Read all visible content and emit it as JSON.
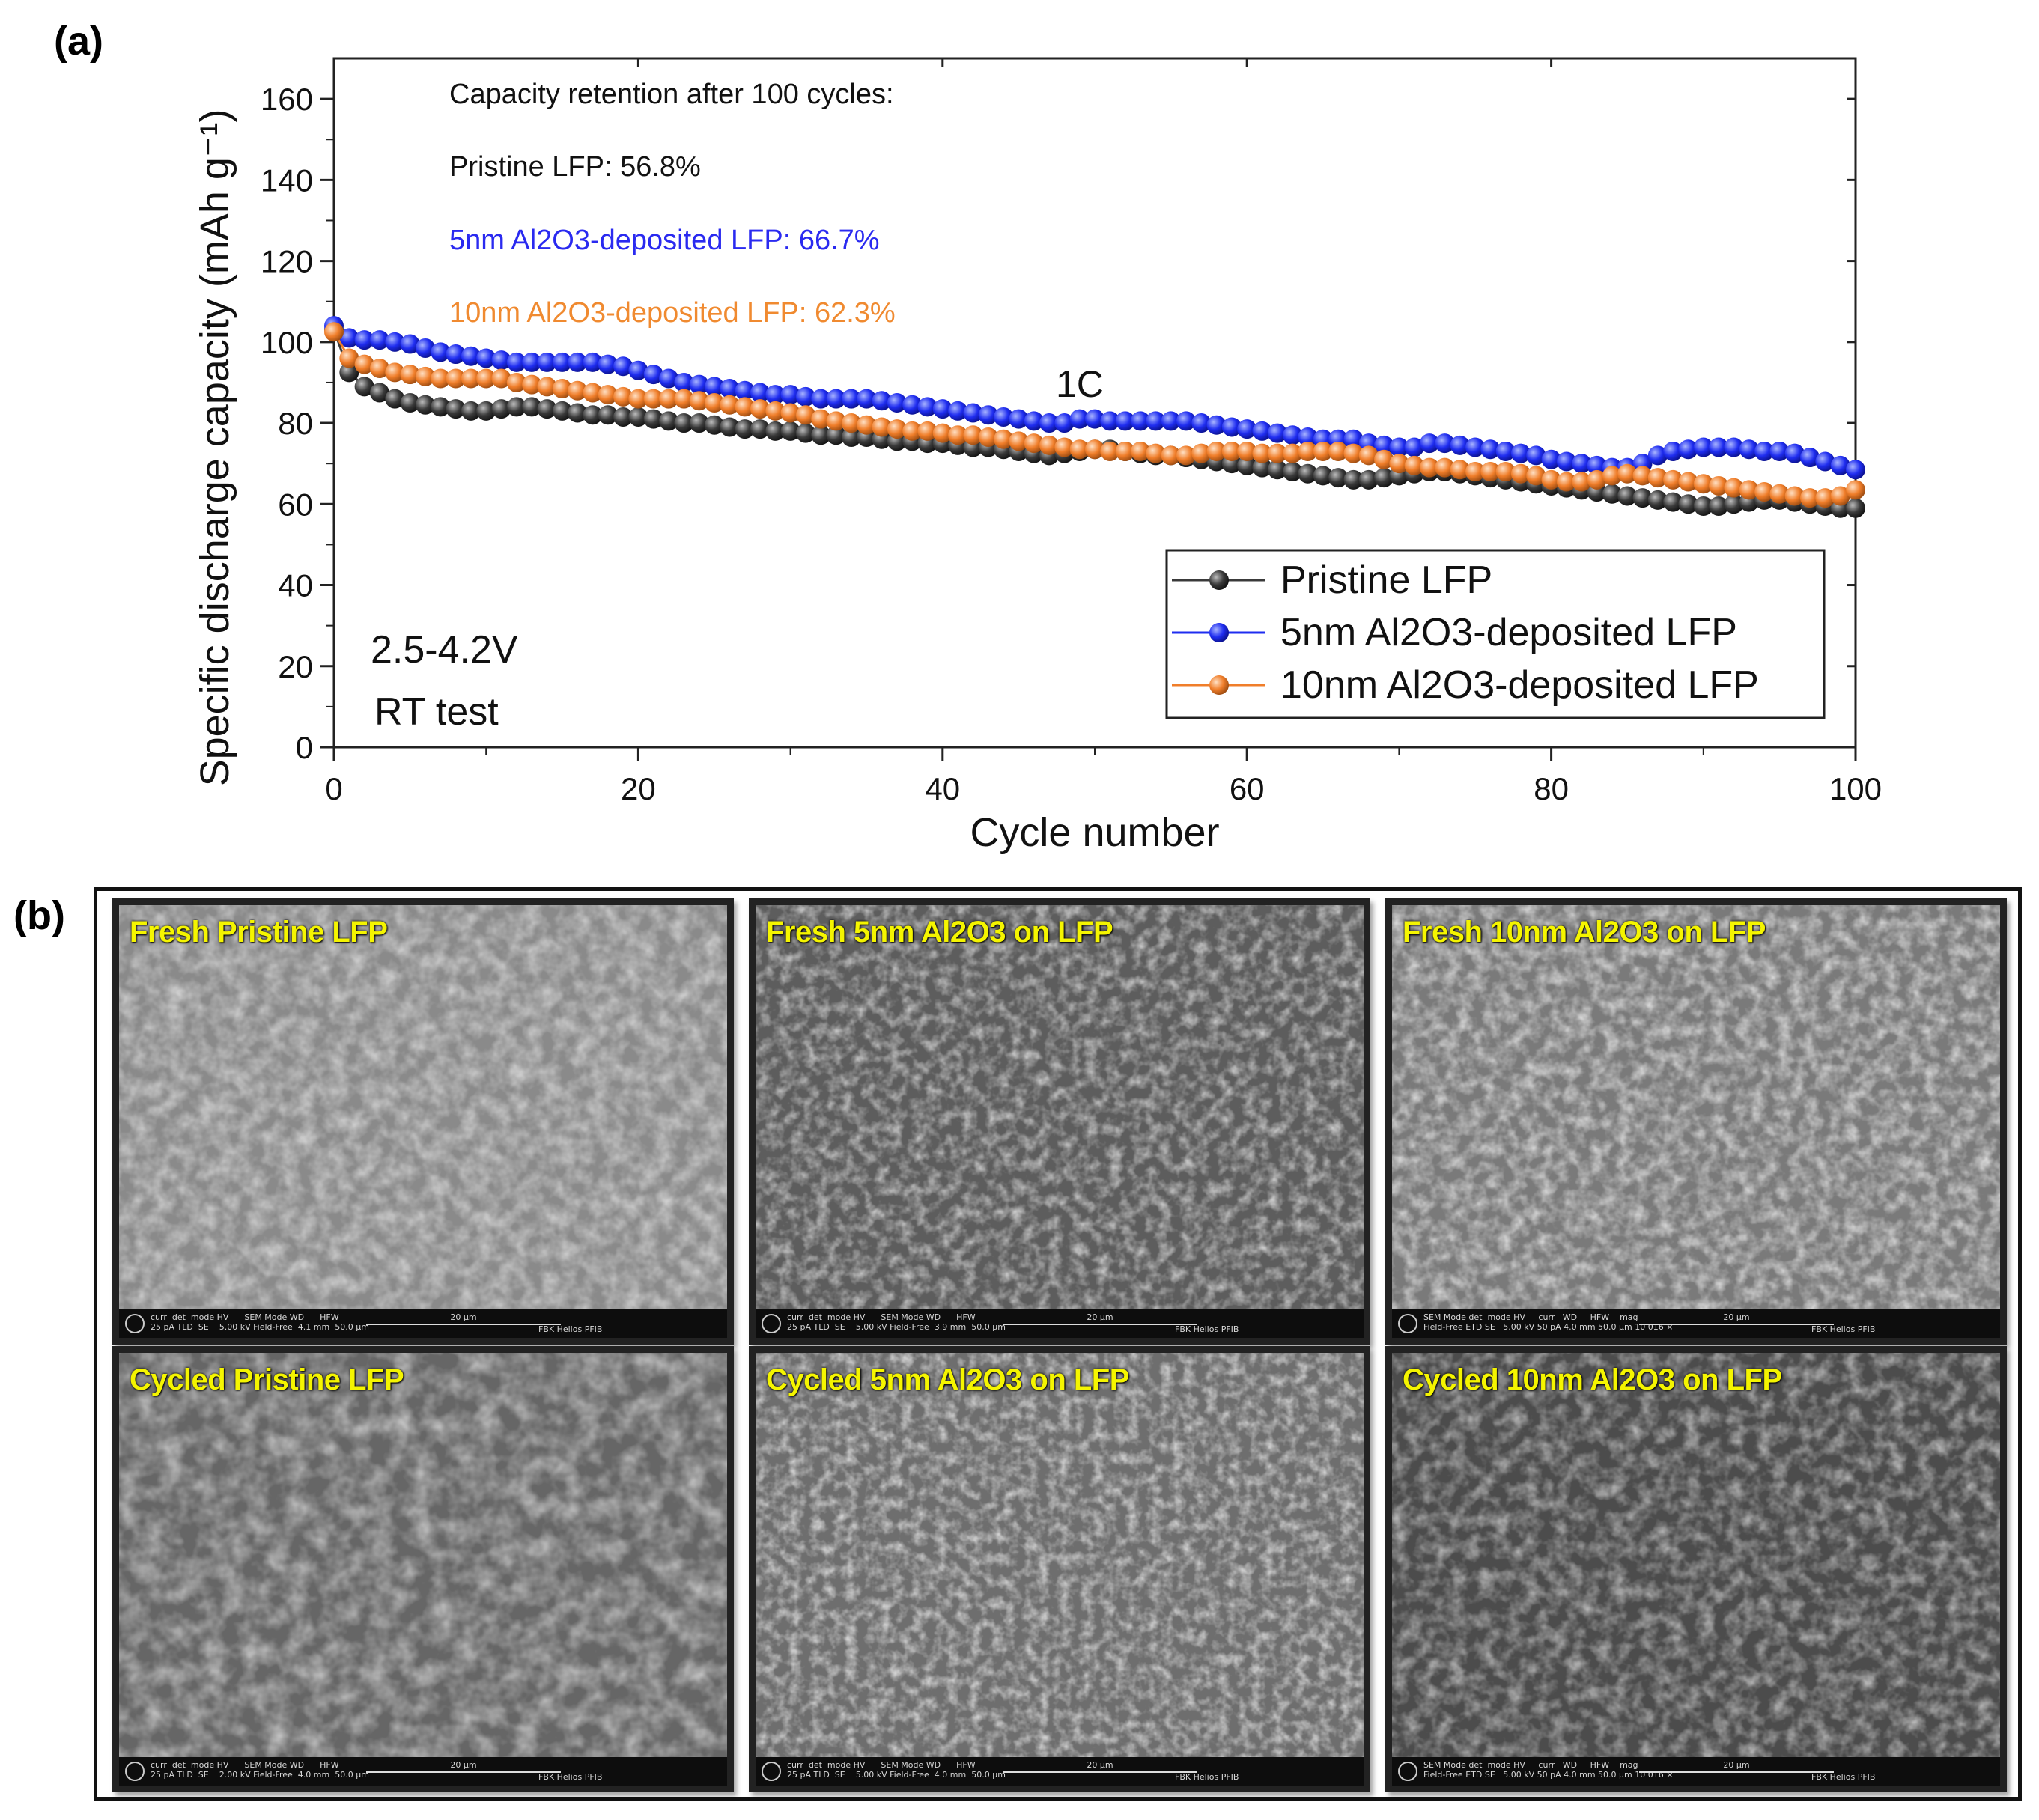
{
  "panel_a_label": "(a)",
  "panel_b_label": "(b)",
  "colors": {
    "pristine": "#3a3a3a",
    "al5": "#1f2df0",
    "al10": "#f07e2a",
    "annotation_blue": "#2a2af0",
    "annotation_orange": "#f08a30",
    "sem_title": "#f5f500"
  },
  "chart_data": {
    "type": "line",
    "title": "",
    "xlabel": "Cycle number",
    "ylabel": "Specific discharge capacity (mAh g⁻¹)",
    "xlim": [
      0,
      100
    ],
    "ylim": [
      0,
      170
    ],
    "xticks": [
      0,
      20,
      40,
      60,
      80,
      100
    ],
    "yticks": [
      0,
      20,
      40,
      60,
      80,
      100,
      120,
      140,
      160
    ],
    "legend_position": "lower-right",
    "annotations": {
      "retention_header": "Capacity retention after 100 cycles:",
      "retention_pristine": "Pristine LFP: 56.8%",
      "retention_5nm": "5nm Al2O3-deposited LFP: 66.7%",
      "retention_10nm": "10nm Al2O3-deposited LFP: 62.3%",
      "rate": "1C",
      "voltage": "2.5-4.2V",
      "temp": "RT test"
    },
    "series": [
      {
        "name": "Pristine LFP",
        "color": "#3a3a3a",
        "x": [
          0,
          1,
          2,
          3,
          4,
          5,
          6,
          7,
          8,
          9,
          10,
          11,
          12,
          13,
          14,
          15,
          16,
          17,
          18,
          19,
          20,
          21,
          22,
          23,
          24,
          25,
          26,
          27,
          28,
          29,
          30,
          31,
          32,
          33,
          34,
          35,
          36,
          37,
          38,
          39,
          40,
          41,
          42,
          43,
          44,
          45,
          46,
          47,
          48,
          49,
          50,
          51,
          52,
          53,
          54,
          55,
          56,
          57,
          58,
          59,
          60,
          61,
          62,
          63,
          64,
          65,
          66,
          67,
          68,
          69,
          70,
          71,
          72,
          73,
          74,
          75,
          76,
          77,
          78,
          79,
          80,
          81,
          82,
          83,
          84,
          85,
          86,
          87,
          88,
          89,
          90,
          91,
          92,
          93,
          94,
          95,
          96,
          97,
          98,
          99,
          100
        ],
        "y": [
          103,
          92.5,
          89,
          87.5,
          86,
          85,
          84.5,
          84,
          83.5,
          83,
          83,
          83.5,
          84,
          84,
          83.5,
          83,
          82.5,
          82,
          82,
          81.5,
          81.5,
          81,
          80.5,
          80,
          80,
          79.5,
          79,
          78.5,
          78.5,
          78,
          78,
          77.5,
          77,
          77,
          76.5,
          76.5,
          76,
          75.5,
          75.5,
          75,
          75,
          74.5,
          74,
          74,
          73.5,
          73,
          72.5,
          72,
          72.5,
          73,
          73.5,
          73.5,
          73,
          72.5,
          72,
          72,
          71.5,
          71,
          70.5,
          70,
          69.5,
          69,
          68.5,
          68,
          67.5,
          67,
          66.5,
          66,
          66,
          66.5,
          67,
          67.5,
          68,
          68,
          67.5,
          67,
          66.5,
          66,
          65.5,
          65,
          64.5,
          64,
          63.5,
          63,
          62.5,
          62,
          61.5,
          61,
          60.5,
          60,
          59.5,
          59.5,
          60,
          60.5,
          61,
          61,
          60.5,
          60,
          59.5,
          59,
          59
        ]
      },
      {
        "name": "5nm Al2O3-deposited LFP",
        "color": "#1f2df0",
        "x": [
          0,
          1,
          2,
          3,
          4,
          5,
          6,
          7,
          8,
          9,
          10,
          11,
          12,
          13,
          14,
          15,
          16,
          17,
          18,
          19,
          20,
          21,
          22,
          23,
          24,
          25,
          26,
          27,
          28,
          29,
          30,
          31,
          32,
          33,
          34,
          35,
          36,
          37,
          38,
          39,
          40,
          41,
          42,
          43,
          44,
          45,
          46,
          47,
          48,
          49,
          50,
          51,
          52,
          53,
          54,
          55,
          56,
          57,
          58,
          59,
          60,
          61,
          62,
          63,
          64,
          65,
          66,
          67,
          68,
          69,
          70,
          71,
          72,
          73,
          74,
          75,
          76,
          77,
          78,
          79,
          80,
          81,
          82,
          83,
          84,
          85,
          86,
          87,
          88,
          89,
          90,
          91,
          92,
          93,
          94,
          95,
          96,
          97,
          98,
          99,
          100
        ],
        "y": [
          104,
          101,
          100.5,
          100.5,
          100,
          99.5,
          98.5,
          97.5,
          97,
          96.5,
          96,
          95.5,
          95,
          95,
          95,
          95,
          95,
          95,
          94.5,
          94,
          93,
          92,
          91,
          90,
          89.5,
          89,
          88.5,
          88,
          87.5,
          87,
          87,
          86.5,
          86,
          86,
          86,
          86,
          85.5,
          85,
          84.5,
          84,
          83.5,
          83,
          82.5,
          82,
          81.5,
          81,
          80.5,
          80,
          80,
          81,
          81,
          80.5,
          80.5,
          80.5,
          80.5,
          80.5,
          80.5,
          80,
          79.5,
          79,
          78.5,
          78,
          77.5,
          77,
          76.5,
          76,
          76,
          76,
          75,
          74.5,
          74,
          74,
          75,
          75,
          74.5,
          74,
          73.5,
          73,
          72.5,
          72,
          71,
          70.5,
          70,
          69.5,
          69,
          69,
          70,
          72,
          73,
          73.5,
          74,
          74,
          74,
          73.5,
          73,
          73,
          72.5,
          71.5,
          70.5,
          69.5,
          68.5
        ]
      },
      {
        "name": "10nm Al2O3-deposited LFP",
        "color": "#f07e2a",
        "x": [
          0,
          1,
          2,
          3,
          4,
          5,
          6,
          7,
          8,
          9,
          10,
          11,
          12,
          13,
          14,
          15,
          16,
          17,
          18,
          19,
          20,
          21,
          22,
          23,
          24,
          25,
          26,
          27,
          28,
          29,
          30,
          31,
          32,
          33,
          34,
          35,
          36,
          37,
          38,
          39,
          40,
          41,
          42,
          43,
          44,
          45,
          46,
          47,
          48,
          49,
          50,
          51,
          52,
          53,
          54,
          55,
          56,
          57,
          58,
          59,
          60,
          61,
          62,
          63,
          64,
          65,
          66,
          67,
          68,
          69,
          70,
          71,
          72,
          73,
          74,
          75,
          76,
          77,
          78,
          79,
          80,
          81,
          82,
          83,
          84,
          85,
          86,
          87,
          88,
          89,
          90,
          91,
          92,
          93,
          94,
          95,
          96,
          97,
          98,
          99,
          100
        ],
        "y": [
          102.5,
          96,
          94.5,
          93.5,
          92.5,
          92,
          91.5,
          91,
          91,
          91,
          91,
          91,
          90,
          89.5,
          89,
          88.5,
          88,
          87.5,
          87,
          86.5,
          86,
          86,
          86,
          86,
          85.5,
          85,
          84.5,
          84,
          83.5,
          83,
          82.5,
          82,
          81,
          80.5,
          80,
          79.5,
          79,
          78.5,
          78,
          78,
          77.5,
          77,
          77,
          76.5,
          76,
          75.5,
          75,
          74.5,
          74,
          73.5,
          73.5,
          73,
          73,
          73,
          72.5,
          72,
          72,
          72.5,
          73,
          73,
          73,
          72.5,
          72.5,
          72.5,
          73,
          73,
          73,
          72.5,
          72,
          71,
          70,
          69.5,
          69,
          69,
          68.5,
          68,
          68,
          68,
          67.5,
          67,
          66,
          65.5,
          65.5,
          66,
          67,
          67.5,
          67,
          66.5,
          66,
          65.5,
          65,
          64.5,
          64,
          63.5,
          63,
          62.5,
          62,
          61.5,
          61.5,
          62,
          63.5
        ]
      }
    ]
  },
  "sem_panels": [
    {
      "title": "Fresh Pristine LFP",
      "meta": "curr  det  mode HV      SEM Mode WD      HFW\n25 pA TLD  SE    5.00 kV Field-Free  4.1 mm  50.0 µm",
      "scale": "20 µm",
      "instrument": "FBK Helios PFIB"
    },
    {
      "title": "Fresh 5nm Al2O3 on LFP",
      "meta": "curr  det  mode HV      SEM Mode WD      HFW\n25 pA TLD  SE    5.00 kV Field-Free  3.9 mm  50.0 µm",
      "scale": "20 µm",
      "instrument": "FBK Helios PFIB"
    },
    {
      "title": "Fresh 10nm Al2O3 on LFP",
      "meta": "SEM Mode det  mode HV     curr   WD     HFW    mag\nField-Free ETD SE   5.00 kV 50 pA 4.0 mm 50.0 µm 10 016 ×",
      "scale": "20 µm",
      "instrument": "FBK Helios PFIB"
    },
    {
      "title": "Cycled Pristine LFP",
      "meta": "curr  det  mode HV      SEM Mode WD      HFW\n25 pA TLD  SE    2.00 kV Field-Free  4.0 mm  50.0 µm",
      "scale": "20 µm",
      "instrument": "FBK Helios PFIB"
    },
    {
      "title": "Cycled 5nm Al2O3 on LFP",
      "meta": "curr  det  mode HV      SEM Mode WD      HFW\n25 pA TLD  SE    5.00 kV Field-Free  4.0 mm  50.0 µm",
      "scale": "20 µm",
      "instrument": "FBK Helios PFIB"
    },
    {
      "title": "Cycled 10nm Al2O3 on LFP",
      "meta": "SEM Mode det  mode HV     curr   WD     HFW    mag\nField-Free ETD SE   5.00 kV 50 pA 4.0 mm 50.0 µm 10 016 ×",
      "scale": "20 µm",
      "instrument": "FBK Helios PFIB"
    }
  ]
}
